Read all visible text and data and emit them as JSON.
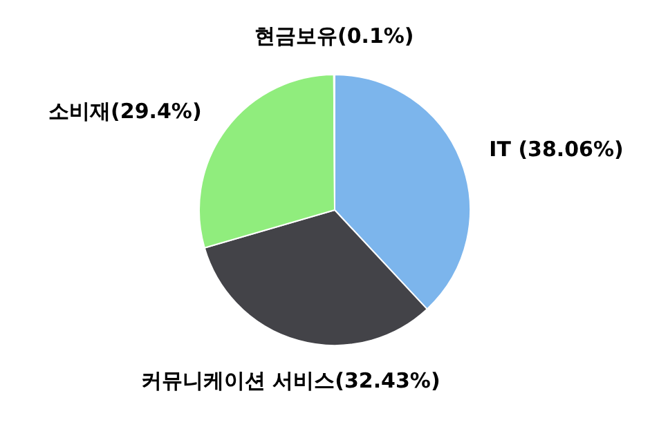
{
  "chart_data": {
    "type": "pie",
    "categories": [
      "IT (38.06%)",
      "커뮤니케이션 서비스(32.43%)",
      "소비재(29.4%)",
      "현금보유(0.1%)"
    ],
    "values": [
      38.06,
      32.43,
      29.4,
      0.1
    ],
    "colors": [
      "#7cb5ec",
      "#434348",
      "#90ed7d",
      "#f7a35c"
    ]
  }
}
